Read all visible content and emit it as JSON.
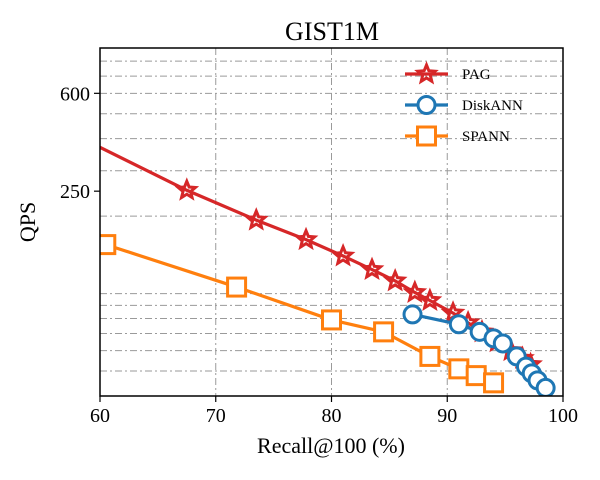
{
  "chart_data": {
    "type": "line",
    "title": "GIST1M",
    "xlabel": "Recall@100 (%)",
    "ylabel": "QPS",
    "xlim": [
      60,
      100
    ],
    "ylim": [
      40,
      900
    ],
    "yscale": "log",
    "x_ticks": [
      60,
      70,
      80,
      90,
      100
    ],
    "x_tick_labels": [
      "60",
      "70",
      "80",
      "90",
      "100"
    ],
    "y_ticks": [
      600,
      250
    ],
    "y_tick_labels": [
      "600",
      "250"
    ],
    "grid": true,
    "legend_position": "top-right",
    "series": [
      {
        "name": "PAG",
        "color": "#d62728",
        "marker": "star",
        "x": [
          60,
          67.5,
          73.5,
          77.8,
          81,
          83.5,
          85.5,
          87.2,
          88.5,
          90.5,
          91.8,
          93,
          94.3,
          95.5,
          96.5,
          97.2
        ],
        "y": [
          370,
          252,
          193,
          162,
          140,
          124,
          112,
          101,
          94,
          84,
          77,
          71,
          65,
          60,
          56,
          53
        ]
      },
      {
        "name": "DiskANN",
        "color": "#1f77b4",
        "marker": "circle",
        "x": [
          87,
          91,
          92.8,
          94,
          94.8,
          96,
          96.8,
          97.3,
          97.8,
          98.5
        ],
        "y": [
          83,
          76,
          71,
          67,
          64,
          57,
          52,
          49,
          46,
          43
        ]
      },
      {
        "name": "SPANN",
        "color": "#ff7f0e",
        "marker": "square",
        "x": [
          60.5,
          71.8,
          80,
          84.5,
          88.5,
          91,
          92.5,
          94
        ],
        "y": [
          155,
          106,
          79,
          71,
          57,
          51,
          48,
          45
        ]
      }
    ]
  }
}
